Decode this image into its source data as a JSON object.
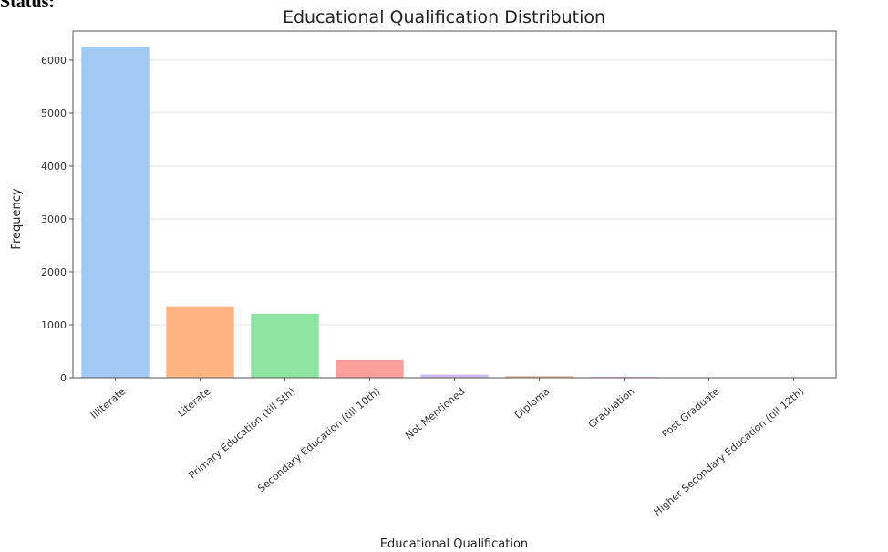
{
  "page": {
    "heading_fragment": "Status:"
  },
  "chart_data": {
    "type": "bar",
    "title": "Educational Qualification Distribution",
    "xlabel": "Educational Qualification",
    "ylabel": "Frequency",
    "categories": [
      "Illiterate",
      "Literate",
      "Primary Education (till 5th)",
      "Secondary Education (till 10th)",
      "Not Mentioned",
      "Diploma",
      "Graduation",
      "Post Graduate",
      "Higher Secondary Education (till 12th)"
    ],
    "values": [
      6250,
      1350,
      1210,
      330,
      60,
      30,
      15,
      8,
      3
    ],
    "colors": [
      "#a1c9f4",
      "#ffb482",
      "#8de5a1",
      "#ff9f9b",
      "#d0bbff",
      "#debb9b",
      "#fab0e4",
      "#cfcfcf",
      "#fffea3"
    ],
    "yticks": [
      0,
      1000,
      2000,
      3000,
      4000,
      5000,
      6000
    ],
    "ylim": [
      0,
      6550
    ],
    "grid": true
  }
}
